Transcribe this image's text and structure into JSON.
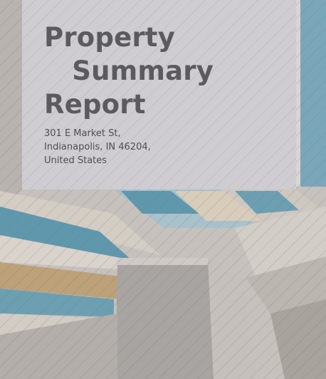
{
  "report": {
    "title_lines": [
      "Property",
      "   Summary",
      "Report"
    ],
    "address_lines": [
      "301 E Market St,",
      "Indianapolis, IN 46204,",
      "United States"
    ]
  },
  "colors": {
    "title_panel": "#d0ced2",
    "title_text": "#5b5a5e",
    "glass_blue": "#6f9fb4",
    "concrete": "#c4bfbb"
  },
  "background_image": "building-facade-photo"
}
